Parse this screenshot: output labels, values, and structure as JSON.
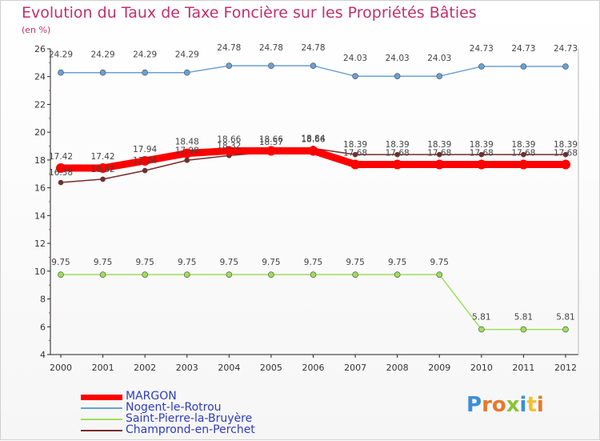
{
  "title": "Evolution du Taux de Taxe Foncière sur les Propriétés Bâties",
  "subtitle": "(en %)",
  "logo": {
    "text": "Proxiti",
    "colors": [
      "#3a8fd8",
      "#e8782a",
      "#e8782a",
      "#8bc43a",
      "#3a8fd8",
      "#f2c12e",
      "#e8782a"
    ]
  },
  "chart_data": {
    "type": "line",
    "title": "Evolution du Taux de Taxe Foncière sur les Propriétés Bâties",
    "ylabel": "(en %)",
    "xlabel": "",
    "x": [
      "2000",
      "2001",
      "2002",
      "2003",
      "2004",
      "2005",
      "2006",
      "2007",
      "2008",
      "2009",
      "2010",
      "2011",
      "2012"
    ],
    "ylim": [
      4,
      26
    ],
    "yticks": [
      4,
      6,
      8,
      10,
      12,
      14,
      16,
      18,
      20,
      22,
      24,
      26
    ],
    "grid": false,
    "series": [
      {
        "name": "MARGON",
        "color": "#ff0000",
        "values": [
          17.42,
          17.42,
          17.94,
          18.48,
          18.66,
          18.66,
          18.66,
          17.68,
          17.68,
          17.68,
          17.68,
          17.68,
          17.68
        ],
        "labels": [
          "17.42",
          "17.42",
          "17.94",
          "18.48",
          "18.66",
          "18.66",
          "18.66",
          "17.68",
          "17.68",
          "17.68",
          "17.68",
          "17.68",
          "17.68"
        ]
      },
      {
        "name": "Nogent-le-Rotrou",
        "color": "#6aa0d2",
        "values": [
          24.29,
          24.29,
          24.29,
          24.29,
          24.78,
          24.78,
          24.78,
          24.03,
          24.03,
          24.03,
          24.73,
          24.73,
          24.73
        ],
        "labels": [
          "24.29",
          "24.29",
          "24.29",
          "24.29",
          "24.78",
          "24.78",
          "24.78",
          "24.03",
          "24.03",
          "24.03",
          "24.73",
          "24.73",
          "24.73"
        ]
      },
      {
        "name": "Saint-Pierre-la-Bruyère",
        "color": "#9ede5a",
        "values": [
          9.75,
          9.75,
          9.75,
          9.75,
          9.75,
          9.75,
          9.75,
          9.75,
          9.75,
          9.75,
          5.81,
          5.81,
          5.81
        ],
        "labels": [
          "9.75",
          "9.75",
          "9.75",
          "9.75",
          "9.75",
          "9.75",
          "9.75",
          "9.75",
          "9.75",
          "9.75",
          "5.81",
          "5.81",
          "5.81"
        ]
      },
      {
        "name": "Champrond-en-Perchet",
        "color": "#7a2a2a",
        "values": [
          16.38,
          16.62,
          17.24,
          17.98,
          18.32,
          18.57,
          18.84,
          18.39,
          18.39,
          18.39,
          18.39,
          18.39,
          18.39
        ],
        "labels": [
          "16.38",
          "16.62",
          "17.24",
          "17.98",
          "18.32",
          "18.57",
          "18.84",
          "18.39",
          "18.39",
          "18.39",
          "18.39",
          "18.39",
          "18.39"
        ]
      }
    ],
    "legend_position": "bottom-left"
  }
}
